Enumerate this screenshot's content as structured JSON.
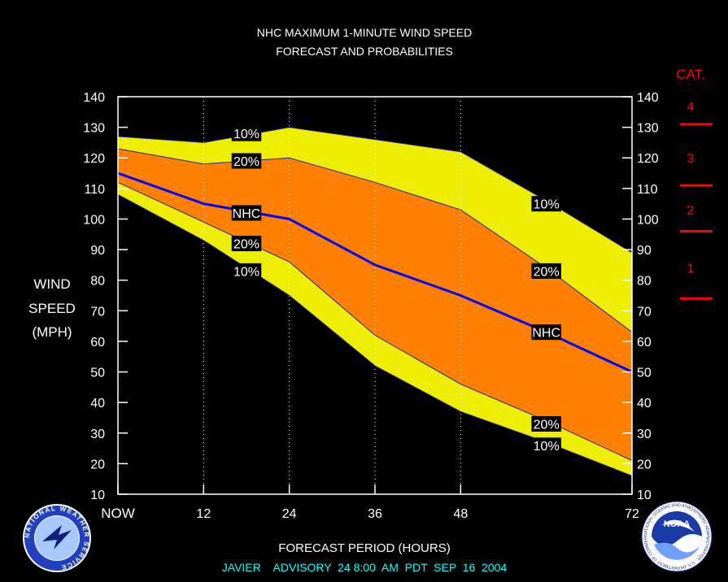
{
  "chart_data": {
    "type": "area",
    "title": "NHC MAXIMUM 1-MINUTE WIND SPEED",
    "subtitle": "FORECAST AND PROBABILITIES",
    "xlabel": "FORECAST PERIOD (HOURS)",
    "ylabel": [
      "WIND",
      "SPEED",
      "(MPH)"
    ],
    "footer": "JAVIER    ADVISORY  24 8:00  AM  PDT  SEP  16  2004",
    "x_ticks": [
      {
        "x": 0,
        "label": "NOW"
      },
      {
        "x": 12,
        "label": "12"
      },
      {
        "x": 24,
        "label": "24"
      },
      {
        "x": 36,
        "label": "36"
      },
      {
        "x": 48,
        "label": "48"
      },
      {
        "x": 72,
        "label": "72"
      }
    ],
    "xlim": [
      0,
      72
    ],
    "ylim": [
      10,
      140
    ],
    "y_ticks": [
      10,
      20,
      30,
      40,
      50,
      60,
      70,
      80,
      90,
      100,
      110,
      120,
      130,
      140
    ],
    "x": [
      0,
      12,
      24,
      36,
      48,
      60,
      72
    ],
    "series": [
      {
        "name": "10%",
        "values": [
          127,
          125,
          130,
          126,
          122,
          106,
          89
        ],
        "color": "#eeee00"
      },
      {
        "name": "20%",
        "values": [
          123,
          118,
          120,
          112,
          103,
          84,
          63
        ],
        "color": "#ff8000"
      },
      {
        "name": "NHC",
        "values": [
          115,
          105,
          100,
          85,
          75,
          63,
          50
        ],
        "color": "#0000ff"
      },
      {
        "name": "20%",
        "values": [
          112,
          99,
          86,
          62,
          46,
          34,
          21
        ],
        "color": "#ff8000"
      },
      {
        "name": "10%",
        "values": [
          108,
          93,
          75,
          52,
          37,
          27,
          16
        ],
        "color": "#eeee00"
      }
    ],
    "labels": [
      {
        "text": "10%",
        "x": 18,
        "y": 128
      },
      {
        "text": "20%",
        "x": 18,
        "y": 119
      },
      {
        "text": "NHC",
        "x": 18,
        "y": 102
      },
      {
        "text": "20%",
        "x": 18,
        "y": 92
      },
      {
        "text": "10%",
        "x": 18,
        "y": 83
      },
      {
        "text": "10%",
        "x": 60,
        "y": 105
      },
      {
        "text": "20%",
        "x": 60,
        "y": 83
      },
      {
        "text": "NHC",
        "x": 60,
        "y": 63
      },
      {
        "text": "20%",
        "x": 60,
        "y": 33
      },
      {
        "text": "10%",
        "x": 60,
        "y": 26
      }
    ],
    "category": {
      "title": "CAT.",
      "labels": [
        {
          "text": "4",
          "y": 137
        },
        {
          "text": "3",
          "y": 120
        },
        {
          "text": "2",
          "y": 103
        },
        {
          "text": "1",
          "y": 84
        }
      ],
      "boundaries": [
        131,
        111,
        96,
        74
      ]
    },
    "colors": {
      "background": "#000000",
      "outer": "#eeee00",
      "inner": "#ff8000",
      "nhc": "#0000ff",
      "category": "#ff0000",
      "footer": "#00ffff",
      "text": "#ffffff"
    }
  },
  "logos": {
    "left": "NATIONAL WEATHER SERVICE",
    "right": "NOAA",
    "right_ring": "NATIONAL OCEANIC AND ATMOSPHERIC ADMINISTRATION · U.S. DEPARTMENT OF COMMERCE"
  }
}
